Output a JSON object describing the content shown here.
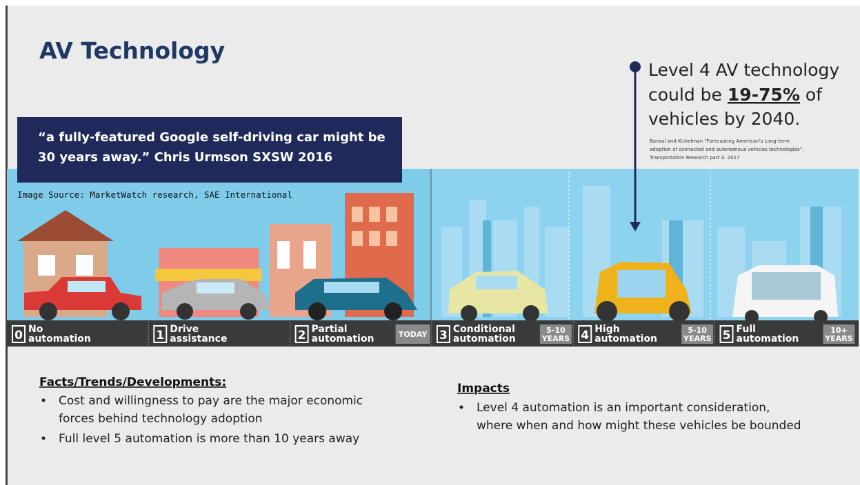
{
  "title": "AV Technology",
  "quote": {
    "line1": "“a fully-featured Google self-driving car might be",
    "line2": "30 years away.” Chris Urmson SXSW 2016"
  },
  "image_source": "Image Source: MarketWatch research, SAE International",
  "callout": {
    "line1": "Level 4 AV technology",
    "line2_start": "could be",
    "highlight": "19-75%",
    "line2_end": "of",
    "line3": "vehicles by 2040."
  },
  "citation": {
    "line1": "Bansal and Kickelman “Forecasting American’s Long-term",
    "line2": "adoption of connected and autonomous vehicles technologies”,",
    "line3": "Transportation Research part A. 2017"
  },
  "levels": [
    {
      "number": "0",
      "label": [
        "No",
        "automation"
      ]
    },
    {
      "number": "1",
      "label": [
        "Drive",
        "assistance"
      ]
    },
    {
      "number": "2",
      "label": [
        "Partial",
        "automation"
      ],
      "tag": [
        "TODAY"
      ]
    },
    {
      "number": "3",
      "label": [
        "Conditional",
        "automation"
      ],
      "tag": [
        "5-10",
        "YEARS"
      ]
    },
    {
      "number": "4",
      "label": [
        "High",
        "automation"
      ],
      "tag": [
        "5-10",
        "YEARS"
      ]
    },
    {
      "number": "5",
      "label": [
        "Full",
        "automation"
      ],
      "tag": [
        "10+",
        "YEARS"
      ]
    }
  ],
  "facts": {
    "heading": "Facts/Trends/Developments:",
    "bullets": [
      [
        "Cost and willingness to pay are the major economic",
        "forces behind technology adoption"
      ],
      [
        "Full level 5 automation is more than 10 years away"
      ]
    ]
  },
  "impacts": {
    "heading": "Impacts",
    "bullets": [
      [
        "Level 4 automation is an important consideration,",
        "where when and how might these vehicles be bounded"
      ]
    ]
  }
}
